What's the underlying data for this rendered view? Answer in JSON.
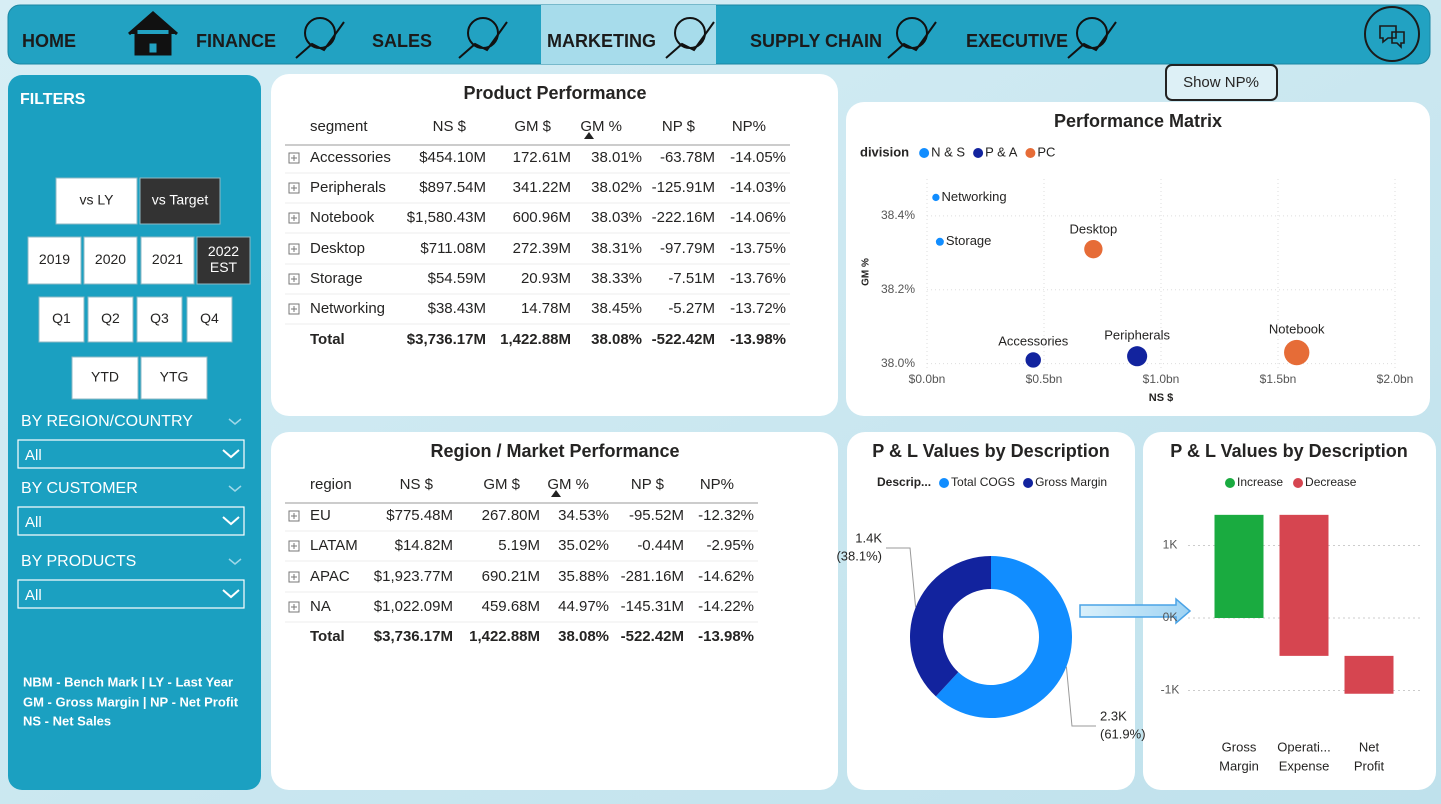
{
  "nav": {
    "items": [
      "HOME",
      "FINANCE",
      "SALES",
      "MARKETING",
      "SUPPLY CHAIN",
      "EXECUTIVE"
    ]
  },
  "filters": {
    "title": "FILTERS",
    "compare": [
      "vs LY",
      "vs Target"
    ],
    "years": [
      "2019",
      "2020",
      "2021",
      [
        "2022",
        "EST"
      ]
    ],
    "quarters": [
      "Q1",
      "Q2",
      "Q3",
      "Q4"
    ],
    "periods": [
      "YTD",
      "YTG"
    ],
    "slicers": [
      {
        "label": "BY REGION/COUNTRY",
        "value": "All"
      },
      {
        "label": "BY CUSTOMER",
        "value": "All"
      },
      {
        "label": "BY PRODUCTS",
        "value": "All"
      }
    ],
    "notes": [
      "NBM - Bench Mark | LY - Last Year",
      "GM - Gross Margin | NP - Net Profit",
      "NS  - Net Sales"
    ]
  },
  "show_button": "Show NP%",
  "product_table": {
    "title": "Product Performance",
    "columns": [
      "segment",
      "NS $",
      "GM $",
      "GM %",
      "NP $",
      "NP%"
    ],
    "rows": [
      [
        "Accessories",
        "$454.10M",
        "172.61M",
        "38.01%",
        "-63.78M",
        "-14.05%"
      ],
      [
        "Peripherals",
        "$897.54M",
        "341.22M",
        "38.02%",
        "-125.91M",
        "-14.03%"
      ],
      [
        "Notebook",
        "$1,580.43M",
        "600.96M",
        "38.03%",
        "-222.16M",
        "-14.06%"
      ],
      [
        "Desktop",
        "$711.08M",
        "272.39M",
        "38.31%",
        "-97.79M",
        "-13.75%"
      ],
      [
        "Storage",
        "$54.59M",
        "20.93M",
        "38.33%",
        "-7.51M",
        "-13.76%"
      ],
      [
        "Networking",
        "$38.43M",
        "14.78M",
        "38.45%",
        "-5.27M",
        "-13.72%"
      ]
    ],
    "total": [
      "Total",
      "$3,736.17M",
      "1,422.88M",
      "38.08%",
      "-522.42M",
      "-13.98%"
    ]
  },
  "region_table": {
    "title": "Region / Market Performance",
    "columns": [
      "region",
      "NS $",
      "GM $",
      "GM %",
      "NP $",
      "NP%"
    ],
    "rows": [
      [
        "EU",
        "$775.48M",
        "267.80M",
        "34.53%",
        "-95.52M",
        "-12.32%"
      ],
      [
        "LATAM",
        "$14.82M",
        "5.19M",
        "35.02%",
        "-0.44M",
        "-2.95%"
      ],
      [
        "APAC",
        "$1,923.77M",
        "690.21M",
        "35.88%",
        "-281.16M",
        "-14.62%"
      ],
      [
        "NA",
        "$1,022.09M",
        "459.68M",
        "44.97%",
        "-145.31M",
        "-14.22%"
      ]
    ],
    "total": [
      "Total",
      "$3,736.17M",
      "1,422.88M",
      "38.08%",
      "-522.42M",
      "-13.98%"
    ]
  },
  "performance_matrix": {
    "type": "scatter",
    "title": "Performance Matrix",
    "legend_title": "division",
    "x_label": "NS $",
    "y_label": "GM %",
    "xlim": [
      0,
      2
    ],
    "xticks": [
      {
        "value": 0,
        "label": "$0.0bn"
      },
      {
        "value": 0.5,
        "label": "$0.5bn"
      },
      {
        "value": 1,
        "label": "$1.0bn"
      },
      {
        "value": 1.5,
        "label": "$1.5bn"
      },
      {
        "value": 2,
        "label": "$2.0bn"
      }
    ],
    "ylim": [
      37.98,
      38.5
    ],
    "yticks": [
      {
        "value": 38.0,
        "label": "38.0%"
      },
      {
        "value": 38.2,
        "label": "38.2%"
      },
      {
        "value": 38.4,
        "label": "38.4%"
      }
    ],
    "grid": true,
    "series": [
      {
        "name": "N & S",
        "color": "#118dff",
        "labels": [
          "Networking",
          "Storage"
        ],
        "x": [
          0.038,
          0.055
        ],
        "y": [
          38.45,
          38.33
        ]
      },
      {
        "name": "P & A",
        "color": "#12239e",
        "labels": [
          "Accessories",
          "Peripherals"
        ],
        "x": [
          0.454,
          0.898
        ],
        "y": [
          38.01,
          38.02
        ]
      },
      {
        "name": "PC",
        "color": "#e66c37",
        "labels": [
          "Desktop",
          "Notebook"
        ],
        "x": [
          0.711,
          1.58
        ],
        "y": [
          38.31,
          38.03
        ]
      }
    ]
  },
  "pl_donut": {
    "type": "pie",
    "title": "P & L Values by Description",
    "legend_title": "Descrip...",
    "categories": [
      "Total COGS",
      "Gross Margin"
    ],
    "colors": [
      "#118dff",
      "#12239e"
    ],
    "values": [
      2313.29,
      1422.88
    ],
    "value_labels": [
      "2.3K",
      "1.4K"
    ],
    "percent_labels": [
      "(61.9%)",
      "(38.1%)"
    ]
  },
  "pl_waterfall": {
    "type": "waterfall",
    "title": "P & L Values by Description",
    "legend": [
      {
        "name": "Increase",
        "color": "#1aab40"
      },
      {
        "name": "Decrease",
        "color": "#d64550"
      }
    ],
    "categories": [
      [
        "Gross",
        "Margin"
      ],
      [
        "Operati...",
        "Expense"
      ],
      [
        "Net",
        "Profit"
      ]
    ],
    "values": [
      1422.88,
      -1945.3,
      -522.42
    ],
    "ylim": [
      -1300,
      1500
    ],
    "yticks": [
      {
        "value": 1000,
        "label": "1K"
      },
      {
        "value": 0,
        "label": "0K"
      },
      {
        "value": -1000,
        "label": "-1K"
      }
    ],
    "grid": true
  }
}
